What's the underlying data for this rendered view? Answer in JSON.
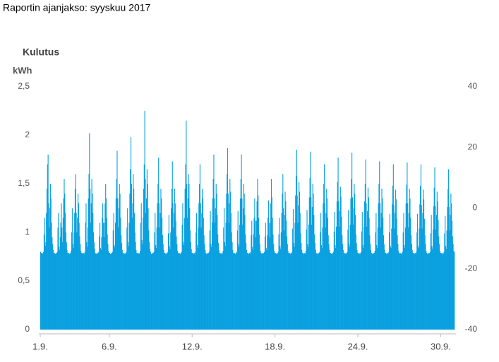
{
  "chart_data": {
    "type": "bar",
    "header": "Raportin ajanjakso: syyskuu 2017",
    "title": "Kulutus",
    "y_label": "kWh",
    "color": "#0aa0e0",
    "xlim": [
      0,
      720
    ],
    "xticks": [
      {
        "value": 0,
        "label": "1.9."
      },
      {
        "value": 120,
        "label": "6.9."
      },
      {
        "value": 264,
        "label": "12.9."
      },
      {
        "value": 408,
        "label": "18.9."
      },
      {
        "value": 552,
        "label": "24.9."
      },
      {
        "value": 696,
        "label": "30.9."
      }
    ],
    "ylim": [
      0,
      2.5
    ],
    "yticks": [
      0,
      {
        "value": 0.5,
        "label": "0,5"
      },
      1,
      {
        "value": 1.5,
        "label": "1,5"
      },
      2,
      {
        "value": 2.5,
        "label": "2,5"
      }
    ],
    "y2lim": [
      -40,
      40
    ],
    "y2ticks": [
      -40,
      -20,
      0,
      20,
      40
    ],
    "x": [
      0,
      1,
      2,
      3,
      4,
      5,
      6,
      7,
      8,
      9,
      10,
      11,
      12,
      13,
      14,
      15,
      16,
      17,
      18,
      19,
      20,
      21,
      22,
      23,
      24,
      25,
      26,
      27,
      28,
      29,
      30,
      31,
      32,
      33,
      34,
      35,
      36,
      37,
      38,
      39,
      40,
      41,
      42,
      43,
      44,
      45,
      46,
      47,
      48,
      49,
      50,
      51,
      52,
      53,
      54,
      55,
      56,
      57,
      58,
      59,
      60,
      61,
      62,
      63,
      64,
      65,
      66,
      67,
      68,
      69,
      70,
      71,
      72,
      73,
      74,
      75,
      76,
      77,
      78,
      79,
      80,
      81,
      82,
      83,
      84,
      85,
      86,
      87,
      88,
      89,
      90,
      91,
      92,
      93,
      94,
      95,
      96,
      97,
      98,
      99,
      100,
      101,
      102,
      103,
      104,
      105,
      106,
      107,
      108,
      109,
      110,
      111,
      112,
      113,
      114,
      115,
      116,
      117,
      118,
      119,
      120,
      121,
      122,
      123,
      124,
      125,
      126,
      127,
      128,
      129,
      130,
      131,
      132,
      133,
      134,
      135,
      136,
      137,
      138,
      139,
      140,
      141,
      142,
      143,
      144,
      145,
      146,
      147,
      148,
      149,
      150,
      151,
      152,
      153,
      154,
      155,
      156,
      157,
      158,
      159,
      160,
      161,
      162,
      163,
      164,
      165,
      166,
      167,
      168,
      169,
      170,
      171,
      172,
      173,
      174,
      175,
      176,
      177,
      178,
      179,
      180,
      181,
      182,
      183,
      184,
      185,
      186,
      187,
      188,
      189,
      190,
      191,
      192,
      193,
      194,
      195,
      196,
      197,
      198,
      199,
      200,
      201,
      202,
      203,
      204,
      205,
      206,
      207,
      208,
      209,
      210,
      211,
      212,
      213,
      214,
      215,
      216,
      217,
      218,
      219,
      220,
      221,
      222,
      223,
      224,
      225,
      226,
      227,
      228,
      229,
      230,
      231,
      232,
      233,
      234,
      235,
      236,
      237,
      238,
      239,
      240,
      241,
      242,
      243,
      244,
      245,
      246,
      247,
      248,
      249,
      250,
      251,
      252,
      253,
      254,
      255,
      256,
      257,
      258,
      259,
      260,
      261,
      262,
      263,
      264,
      265,
      266,
      267,
      268,
      269,
      270,
      271,
      272,
      273,
      274,
      275,
      276,
      277,
      278,
      279,
      280,
      281,
      282,
      283,
      284,
      285,
      286,
      287,
      288,
      289,
      290,
      291,
      292,
      293,
      294,
      295,
      296,
      297,
      298,
      299,
      300,
      301,
      302,
      303,
      304,
      305,
      306,
      307,
      308,
      309,
      310,
      311,
      312,
      313,
      314,
      315,
      316,
      317,
      318,
      319,
      320,
      321,
      322,
      323,
      324,
      325,
      326,
      327,
      328,
      329,
      330,
      331,
      332,
      333,
      334,
      335,
      336,
      337,
      338,
      339,
      340,
      341,
      342,
      343,
      344,
      345,
      346,
      347,
      348,
      349,
      350,
      351,
      352,
      353,
      354,
      355,
      356,
      357,
      358,
      359,
      360,
      361,
      362,
      363,
      364,
      365,
      366,
      367,
      368,
      369,
      370,
      371,
      372,
      373,
      374,
      375,
      376,
      377,
      378,
      379,
      380,
      381,
      382,
      383,
      384,
      385,
      386,
      387,
      388,
      389,
      390,
      391,
      392,
      393,
      394,
      395,
      396,
      397,
      398,
      399,
      400,
      401,
      402,
      403,
      404,
      405,
      406,
      407,
      408,
      409,
      410,
      411,
      412,
      413,
      414,
      415,
      416,
      417,
      418,
      419,
      420,
      421,
      422,
      423,
      424,
      425,
      426,
      427,
      428,
      429,
      430,
      431,
      432,
      433,
      434,
      435,
      436,
      437,
      438,
      439,
      440,
      441,
      442,
      443,
      444,
      445,
      446,
      447,
      448,
      449,
      450,
      451,
      452,
      453,
      454,
      455,
      456,
      457,
      458,
      459,
      460,
      461,
      462,
      463,
      464,
      465,
      466,
      467,
      468,
      469,
      470,
      471,
      472,
      473,
      474,
      475,
      476,
      477,
      478,
      479,
      480,
      481,
      482,
      483,
      484,
      485,
      486,
      487,
      488,
      489,
      490,
      491,
      492,
      493,
      494,
      495,
      496,
      497,
      498,
      499,
      500,
      501,
      502,
      503,
      504,
      505,
      506,
      507,
      508,
      509,
      510,
      511,
      512,
      513,
      514,
      515,
      516,
      517,
      518,
      519,
      520,
      521,
      522,
      523,
      524,
      525,
      526,
      527,
      528,
      529,
      530,
      531,
      532,
      533,
      534,
      535,
      536,
      537,
      538,
      539,
      540,
      541,
      542,
      543,
      544,
      545,
      546,
      547,
      548,
      549,
      550,
      551,
      552,
      553,
      554,
      555,
      556,
      557,
      558,
      559,
      560,
      561,
      562,
      563,
      564,
      565,
      566,
      567,
      568,
      569,
      570,
      571,
      572,
      573,
      574,
      575,
      576,
      577,
      578,
      579,
      580,
      581,
      582,
      583,
      584,
      585,
      586,
      587,
      588,
      589,
      590,
      591,
      592,
      593,
      594,
      595,
      596,
      597,
      598,
      599,
      600,
      601,
      602,
      603,
      604,
      605,
      606,
      607,
      608,
      609,
      610,
      611,
      612,
      613,
      614,
      615,
      616,
      617,
      618,
      619,
      620,
      621,
      622,
      623,
      624,
      625,
      626,
      627,
      628,
      629,
      630,
      631,
      632,
      633,
      634,
      635,
      636,
      637,
      638,
      639,
      640,
      641,
      642,
      643,
      644,
      645,
      646,
      647,
      648,
      649,
      650,
      651,
      652,
      653,
      654,
      655,
      656,
      657,
      658,
      659,
      660,
      661,
      662,
      663,
      664,
      665,
      666,
      667,
      668,
      669,
      670,
      671,
      672,
      673,
      674,
      675,
      676,
      677,
      678,
      679,
      680,
      681,
      682,
      683,
      684,
      685,
      686,
      687,
      688,
      689,
      690,
      691,
      692,
      693,
      694,
      695,
      696,
      697,
      698,
      699,
      700,
      701,
      702,
      703,
      704,
      705,
      706,
      707,
      708,
      709,
      710,
      711,
      712,
      713,
      714,
      715,
      716,
      717,
      718,
      719
    ],
    "values": [
      0.8,
      0.79,
      0.78,
      0.78,
      0.79,
      0.8,
      0.98,
      1.15,
      0.86,
      0.9,
      1.2,
      1.45,
      1.7,
      1.8,
      1.3,
      1.05,
      1.25,
      1.5,
      1.35,
      1.1,
      0.95,
      0.88,
      0.82,
      0.79,
      0.79,
      0.78,
      0.78,
      0.79,
      0.78,
      0.8,
      1.05,
      1.2,
      0.85,
      0.82,
      0.95,
      1.1,
      1.3,
      1.05,
      0.9,
      1.15,
      1.35,
      1.55,
      1.4,
      1.2,
      1.0,
      0.9,
      0.82,
      0.79,
      0.78,
      0.79,
      0.78,
      0.78,
      0.79,
      0.81,
      1.0,
      1.25,
      0.88,
      0.84,
      1.0,
      1.2,
      1.45,
      1.6,
      1.2,
      1.0,
      1.15,
      1.4,
      1.3,
      1.1,
      0.96,
      0.88,
      0.81,
      0.79,
      0.79,
      0.78,
      0.78,
      0.79,
      0.78,
      0.8,
      1.1,
      1.3,
      0.9,
      0.85,
      1.05,
      1.35,
      1.6,
      2.02,
      1.45,
      1.1,
      1.3,
      1.55,
      1.4,
      1.2,
      1.0,
      0.9,
      0.83,
      0.79,
      0.78,
      0.78,
      0.79,
      0.78,
      0.79,
      0.8,
      0.96,
      1.1,
      0.84,
      0.82,
      0.95,
      1.15,
      1.3,
      1.1,
      0.95,
      1.1,
      1.3,
      1.5,
      1.35,
      1.15,
      0.98,
      0.88,
      0.81,
      0.79,
      0.79,
      0.78,
      0.78,
      0.79,
      0.78,
      0.8,
      1.02,
      1.2,
      0.87,
      0.85,
      1.1,
      1.35,
      1.55,
      1.84,
      1.35,
      1.05,
      1.25,
      1.5,
      1.4,
      1.15,
      0.97,
      0.89,
      0.82,
      0.79,
      0.78,
      0.79,
      0.78,
      0.78,
      0.79,
      0.8,
      1.05,
      1.25,
      0.9,
      0.86,
      1.1,
      1.4,
      1.65,
      1.98,
      1.5,
      1.15,
      1.3,
      1.6,
      1.45,
      1.2,
      1.0,
      0.9,
      0.82,
      0.79,
      0.79,
      0.78,
      0.78,
      0.79,
      0.78,
      0.81,
      1.1,
      1.3,
      0.92,
      0.88,
      1.15,
      1.45,
      1.7,
      2.25,
      1.55,
      1.2,
      1.35,
      1.65,
      1.5,
      1.25,
      1.02,
      0.9,
      0.83,
      0.8,
      0.78,
      0.78,
      0.79,
      0.78,
      0.79,
      0.8,
      1.0,
      1.2,
      0.87,
      0.84,
      1.05,
      1.3,
      1.5,
      1.77,
      1.3,
      1.05,
      1.2,
      1.45,
      1.35,
      1.15,
      0.97,
      0.88,
      0.82,
      0.79,
      0.79,
      0.78,
      0.78,
      0.79,
      0.78,
      0.8,
      0.99,
      1.18,
      0.86,
      0.83,
      1.0,
      1.25,
      1.45,
      1.73,
      1.3,
      1.05,
      1.2,
      1.45,
      1.3,
      1.12,
      0.96,
      0.88,
      0.81,
      0.79,
      0.78,
      0.79,
      0.78,
      0.78,
      0.79,
      0.8,
      1.08,
      1.3,
      0.9,
      0.87,
      1.15,
      1.45,
      1.7,
      2.15,
      1.5,
      1.15,
      1.35,
      1.6,
      1.5,
      1.25,
      1.02,
      0.9,
      0.83,
      0.79,
      0.79,
      0.78,
      0.78,
      0.79,
      0.78,
      0.8,
      1.0,
      1.2,
      0.87,
      0.84,
      1.05,
      1.3,
      1.5,
      1.7,
      1.3,
      1.05,
      1.2,
      1.45,
      1.35,
      1.15,
      0.97,
      0.88,
      0.82,
      0.79,
      0.78,
      0.78,
      0.79,
      0.78,
      0.79,
      0.8,
      1.02,
      1.22,
      0.88,
      0.85,
      1.1,
      1.35,
      1.55,
      1.8,
      1.35,
      1.1,
      1.25,
      1.5,
      1.4,
      1.18,
      0.98,
      0.89,
      0.82,
      0.79,
      0.79,
      0.78,
      0.78,
      0.79,
      0.78,
      0.81,
      1.05,
      1.25,
      0.9,
      0.86,
      1.1,
      1.4,
      1.6,
      1.87,
      1.4,
      1.1,
      1.3,
      1.55,
      1.42,
      1.2,
      1.0,
      0.9,
      0.82,
      0.79,
      0.78,
      0.79,
      0.78,
      0.78,
      0.79,
      0.8,
      1.02,
      1.22,
      0.88,
      0.85,
      1.08,
      1.35,
      1.55,
      1.8,
      1.35,
      1.08,
      1.25,
      1.5,
      1.4,
      1.18,
      0.98,
      0.89,
      0.82,
      0.79,
      0.79,
      0.78,
      0.78,
      0.79,
      0.78,
      0.8,
      0.97,
      1.12,
      0.85,
      0.82,
      0.98,
      1.15,
      1.35,
      1.12,
      0.95,
      1.12,
      1.32,
      1.55,
      1.38,
      1.15,
      0.98,
      0.88,
      0.81,
      0.79,
      0.78,
      0.78,
      0.79,
      0.78,
      0.79,
      0.8,
      0.96,
      1.1,
      0.84,
      0.82,
      0.97,
      1.15,
      1.33,
      1.1,
      0.95,
      1.1,
      1.3,
      1.55,
      1.36,
      1.15,
      0.98,
      0.88,
      0.81,
      0.79,
      0.79,
      0.78,
      0.78,
      0.79,
      0.78,
      0.8,
      0.98,
      1.15,
      0.86,
      0.83,
      1.0,
      1.2,
      1.4,
      1.6,
      1.25,
      1.02,
      1.18,
      1.42,
      1.32,
      1.12,
      0.96,
      0.88,
      0.81,
      0.79,
      0.78,
      0.79,
      0.78,
      0.78,
      0.79,
      0.8,
      1.04,
      1.24,
      0.89,
      0.85,
      1.1,
      1.38,
      1.58,
      1.85,
      1.38,
      1.1,
      1.28,
      1.52,
      1.42,
      1.2,
      0.99,
      0.89,
      0.82,
      0.79,
      0.79,
      0.78,
      0.78,
      0.79,
      0.78,
      0.81,
      1.03,
      1.23,
      0.88,
      0.85,
      1.08,
      1.36,
      1.56,
      1.83,
      1.36,
      1.08,
      1.26,
      1.5,
      1.4,
      1.18,
      0.98,
      0.89,
      0.82,
      0.79,
      0.78,
      0.78,
      0.79,
      0.78,
      0.79,
      0.8,
      1.0,
      1.2,
      0.87,
      0.84,
      1.05,
      1.3,
      1.5,
      1.7,
      1.3,
      1.05,
      1.2,
      1.45,
      1.35,
      1.15,
      0.97,
      0.88,
      0.82,
      0.79,
      0.79,
      0.78,
      0.78,
      0.79,
      0.78,
      0.8,
      1.01,
      1.21,
      0.87,
      0.84,
      1.06,
      1.32,
      1.52,
      1.77,
      1.32,
      1.06,
      1.22,
      1.47,
      1.37,
      1.16,
      0.97,
      0.88,
      0.82,
      0.79,
      0.78,
      0.79,
      0.78,
      0.78,
      0.79,
      0.8,
      1.03,
      1.23,
      0.88,
      0.85,
      1.08,
      1.35,
      1.55,
      1.82,
      1.36,
      1.08,
      1.25,
      1.5,
      1.4,
      1.18,
      0.98,
      0.89,
      0.82,
      0.79,
      0.79,
      0.78,
      0.78,
      0.79,
      0.78,
      0.8,
      1.01,
      1.21,
      0.87,
      0.84,
      1.06,
      1.32,
      1.5,
      1.75,
      1.3,
      1.06,
      1.22,
      1.46,
      1.36,
      1.15,
      0.97,
      0.88,
      0.82,
      0.79,
      0.78,
      0.78,
      0.79,
      0.78,
      0.79,
      0.81,
      1.0,
      1.2,
      0.87,
      0.84,
      1.05,
      1.3,
      1.5,
      1.73,
      1.3,
      1.05,
      1.2,
      1.45,
      1.35,
      1.15,
      0.97,
      0.88,
      0.82,
      0.79,
      0.79,
      0.78,
      0.78,
      0.79,
      0.78,
      0.8,
      1.0,
      1.19,
      0.86,
      0.84,
      1.04,
      1.29,
      1.48,
      1.7,
      1.28,
      1.04,
      1.2,
      1.44,
      1.34,
      1.14,
      0.97,
      0.88,
      0.81,
      0.79,
      0.78,
      0.79,
      0.78,
      0.78,
      0.79,
      0.8,
      1.0,
      1.2,
      0.87,
      0.84,
      1.05,
      1.3,
      1.49,
      1.72,
      1.3,
      1.05,
      1.2,
      1.45,
      1.35,
      1.15,
      0.97,
      0.88,
      0.82,
      0.79,
      0.79,
      0.78,
      0.78,
      0.79,
      0.78,
      0.8,
      1.0,
      1.19,
      0.86,
      0.84,
      1.04,
      1.29,
      1.48,
      1.7,
      1.28,
      1.04,
      1.2,
      1.44,
      1.34,
      1.14,
      0.97,
      0.88,
      0.81,
      0.79,
      0.78,
      0.78,
      0.79,
      0.78,
      0.79,
      0.8,
      0.99,
      1.18,
      0.86,
      0.83,
      1.03,
      1.27,
      1.46,
      1.67,
      1.27,
      1.03,
      1.18,
      1.42,
      1.32,
      1.13,
      0.96,
      0.88,
      0.81,
      0.79,
      0.79,
      0.78,
      0.78,
      0.79,
      0.78,
      0.8,
      0.99,
      1.17,
      0.86,
      0.83,
      1.02,
      1.26,
      1.45,
      1.65,
      1.26,
      1.02,
      1.18,
      1.4,
      1.3,
      1.12,
      0.96,
      0.88,
      0.81,
      0.8
    ]
  }
}
